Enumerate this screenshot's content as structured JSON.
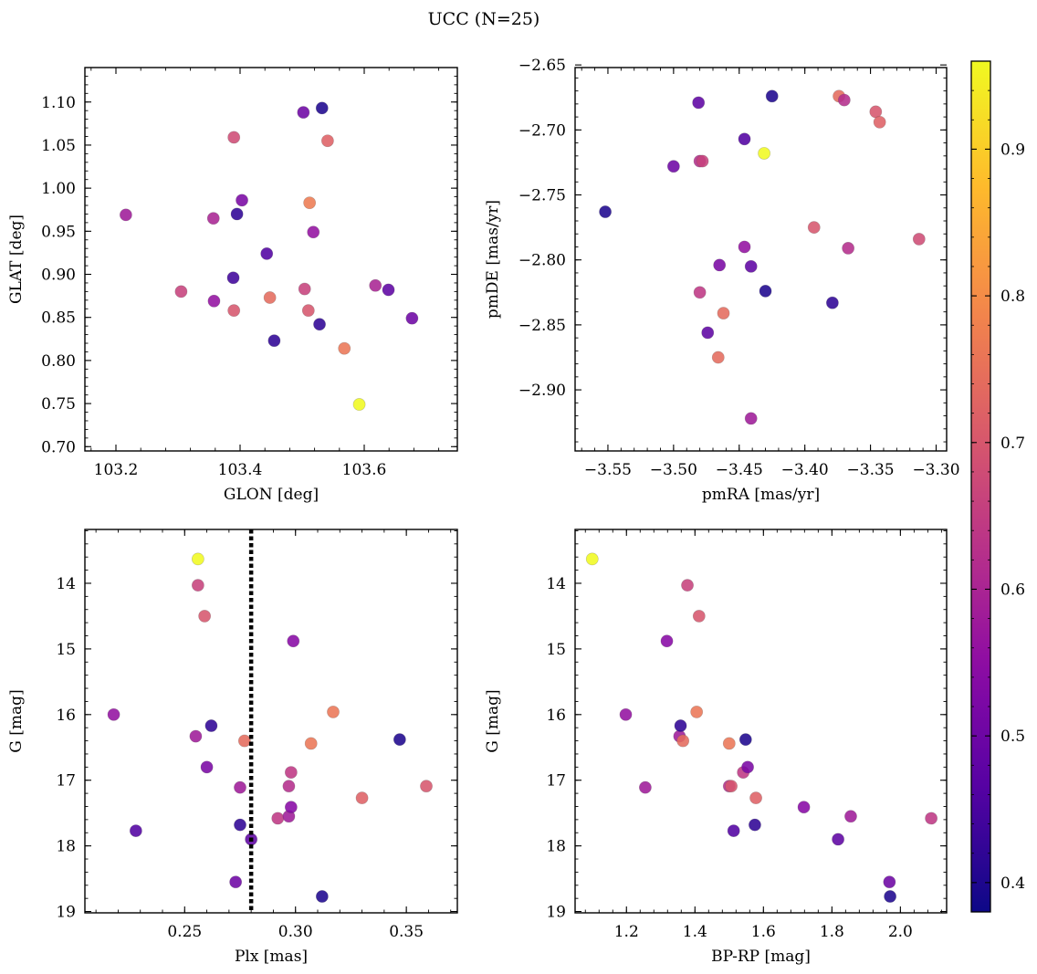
{
  "figure": {
    "title": "UCC (N=25)"
  },
  "colorbar": {
    "min": 0.38,
    "max": 0.96,
    "ticks": [
      0.4,
      0.5,
      0.6,
      0.7,
      0.8,
      0.9
    ],
    "tick_labels": [
      "0.4",
      "0.5",
      "0.6",
      "0.7",
      "0.8",
      "0.9"
    ],
    "colormap": "plasma"
  },
  "chart_data": [
    {
      "type": "scatter",
      "xlabel": "GLON [deg]",
      "ylabel": "GLAT [deg]",
      "xlim": [
        103.15,
        103.75
      ],
      "ylim": [
        0.695,
        1.14
      ],
      "invert_y": false,
      "xticks": [
        103.2,
        103.4,
        103.6
      ],
      "xtick_labels": [
        "103.2",
        "103.4",
        "103.6"
      ],
      "yticks": [
        0.7,
        0.75,
        0.8,
        0.85,
        0.9,
        0.95,
        1.0,
        1.05,
        1.1
      ],
      "ytick_labels": [
        "0.70",
        "0.75",
        "0.80",
        "0.85",
        "0.90",
        "0.95",
        "1.00",
        "1.05",
        "1.10"
      ],
      "points": [
        {
          "x": 103.216,
          "y": 0.969,
          "c": 0.58
        },
        {
          "x": 103.305,
          "y": 0.88,
          "c": 0.66
        },
        {
          "x": 103.357,
          "y": 0.965,
          "c": 0.6
        },
        {
          "x": 103.358,
          "y": 0.869,
          "c": 0.56
        },
        {
          "x": 103.39,
          "y": 1.059,
          "c": 0.68
        },
        {
          "x": 103.39,
          "y": 0.858,
          "c": 0.7
        },
        {
          "x": 103.389,
          "y": 0.896,
          "c": 0.44
        },
        {
          "x": 103.395,
          "y": 0.97,
          "c": 0.42
        },
        {
          "x": 103.403,
          "y": 0.986,
          "c": 0.52
        },
        {
          "x": 103.443,
          "y": 0.924,
          "c": 0.46
        },
        {
          "x": 103.448,
          "y": 0.873,
          "c": 0.74
        },
        {
          "x": 103.455,
          "y": 0.823,
          "c": 0.42
        },
        {
          "x": 103.502,
          "y": 1.088,
          "c": 0.5
        },
        {
          "x": 103.504,
          "y": 0.883,
          "c": 0.66
        },
        {
          "x": 103.51,
          "y": 0.858,
          "c": 0.7
        },
        {
          "x": 103.512,
          "y": 0.983,
          "c": 0.77
        },
        {
          "x": 103.518,
          "y": 0.949,
          "c": 0.56
        },
        {
          "x": 103.528,
          "y": 0.842,
          "c": 0.42
        },
        {
          "x": 103.532,
          "y": 1.093,
          "c": 0.4
        },
        {
          "x": 103.541,
          "y": 1.055,
          "c": 0.72
        },
        {
          "x": 103.568,
          "y": 0.814,
          "c": 0.76
        },
        {
          "x": 103.592,
          "y": 0.749,
          "c": 0.96
        },
        {
          "x": 103.618,
          "y": 0.887,
          "c": 0.6
        },
        {
          "x": 103.639,
          "y": 0.882,
          "c": 0.48
        },
        {
          "x": 103.677,
          "y": 0.849,
          "c": 0.5
        }
      ]
    },
    {
      "type": "scatter",
      "xlabel": "pmRA [mas/yr]",
      "ylabel": "pmDE [mas/yr]",
      "xlim": [
        -3.575,
        -3.292
      ],
      "ylim": [
        -2.947,
        -2.652
      ],
      "invert_y": false,
      "xticks": [
        -3.55,
        -3.5,
        -3.45,
        -3.4,
        -3.35,
        -3.3
      ],
      "xtick_labels": [
        "−3.55",
        "−3.50",
        "−3.45",
        "−3.40",
        "−3.35",
        "−3.30"
      ],
      "yticks": [
        -2.9,
        -2.85,
        -2.8,
        -2.75,
        -2.7,
        -2.65
      ],
      "ytick_labels": [
        "−2.90",
        "−2.85",
        "−2.80",
        "−2.75",
        "−2.70",
        "−2.65"
      ],
      "points": [
        {
          "x": -3.552,
          "y": -2.763,
          "c": 0.4
        },
        {
          "x": -3.5,
          "y": -2.728,
          "c": 0.5
        },
        {
          "x": -3.481,
          "y": -2.679,
          "c": 0.48
        },
        {
          "x": -3.48,
          "y": -2.724,
          "c": 0.62
        },
        {
          "x": -3.478,
          "y": -2.724,
          "c": 0.66
        },
        {
          "x": -3.48,
          "y": -2.825,
          "c": 0.64
        },
        {
          "x": -3.474,
          "y": -2.856,
          "c": 0.48
        },
        {
          "x": -3.466,
          "y": -2.875,
          "c": 0.74
        },
        {
          "x": -3.465,
          "y": -2.804,
          "c": 0.52
        },
        {
          "x": -3.462,
          "y": -2.841,
          "c": 0.74
        },
        {
          "x": -3.446,
          "y": -2.707,
          "c": 0.46
        },
        {
          "x": -3.446,
          "y": -2.79,
          "c": 0.56
        },
        {
          "x": -3.441,
          "y": -2.805,
          "c": 0.48
        },
        {
          "x": -3.441,
          "y": -2.922,
          "c": 0.58
        },
        {
          "x": -3.431,
          "y": -2.718,
          "c": 0.96
        },
        {
          "x": -3.43,
          "y": -2.824,
          "c": 0.4
        },
        {
          "x": -3.425,
          "y": -2.674,
          "c": 0.4
        },
        {
          "x": -3.393,
          "y": -2.775,
          "c": 0.7
        },
        {
          "x": -3.379,
          "y": -2.833,
          "c": 0.42
        },
        {
          "x": -3.374,
          "y": -2.674,
          "c": 0.74
        },
        {
          "x": -3.37,
          "y": -2.677,
          "c": 0.62
        },
        {
          "x": -3.367,
          "y": -2.791,
          "c": 0.62
        },
        {
          "x": -3.346,
          "y": -2.686,
          "c": 0.7
        },
        {
          "x": -3.343,
          "y": -2.694,
          "c": 0.72
        },
        {
          "x": -3.313,
          "y": -2.784,
          "c": 0.68
        }
      ]
    },
    {
      "type": "scatter",
      "xlabel": "Plx [mas]",
      "ylabel": "G [mag]",
      "xlim": [
        0.205,
        0.373
      ],
      "ylim": [
        13.18,
        19.02
      ],
      "invert_y": true,
      "vline": {
        "x": 0.28,
        "style": "dotted"
      },
      "xticks": [
        0.25,
        0.3,
        0.35
      ],
      "xtick_labels": [
        "0.25",
        "0.30",
        "0.35"
      ],
      "yticks": [
        14,
        15,
        16,
        17,
        18,
        19
      ],
      "ytick_labels": [
        "14",
        "15",
        "16",
        "17",
        "18",
        "19"
      ],
      "points": [
        {
          "x": 0.218,
          "y": 16.0,
          "c": 0.56
        },
        {
          "x": 0.228,
          "y": 17.77,
          "c": 0.46
        },
        {
          "x": 0.255,
          "y": 16.33,
          "c": 0.58
        },
        {
          "x": 0.256,
          "y": 13.63,
          "c": 0.96
        },
        {
          "x": 0.256,
          "y": 14.03,
          "c": 0.66
        },
        {
          "x": 0.259,
          "y": 14.5,
          "c": 0.7
        },
        {
          "x": 0.26,
          "y": 16.8,
          "c": 0.52
        },
        {
          "x": 0.262,
          "y": 16.17,
          "c": 0.42
        },
        {
          "x": 0.273,
          "y": 18.55,
          "c": 0.5
        },
        {
          "x": 0.275,
          "y": 17.68,
          "c": 0.42
        },
        {
          "x": 0.275,
          "y": 17.11,
          "c": 0.58
        },
        {
          "x": 0.277,
          "y": 16.4,
          "c": 0.74
        },
        {
          "x": 0.28,
          "y": 17.9,
          "c": 0.48
        },
        {
          "x": 0.292,
          "y": 17.58,
          "c": 0.64
        },
        {
          "x": 0.297,
          "y": 17.09,
          "c": 0.62
        },
        {
          "x": 0.297,
          "y": 17.55,
          "c": 0.58
        },
        {
          "x": 0.298,
          "y": 16.88,
          "c": 0.64
        },
        {
          "x": 0.298,
          "y": 17.41,
          "c": 0.54
        },
        {
          "x": 0.299,
          "y": 14.88,
          "c": 0.54
        },
        {
          "x": 0.307,
          "y": 16.44,
          "c": 0.76
        },
        {
          "x": 0.312,
          "y": 18.77,
          "c": 0.4
        },
        {
          "x": 0.317,
          "y": 15.96,
          "c": 0.76
        },
        {
          "x": 0.33,
          "y": 17.27,
          "c": 0.72
        },
        {
          "x": 0.347,
          "y": 16.38,
          "c": 0.4
        },
        {
          "x": 0.359,
          "y": 17.09,
          "c": 0.7
        }
      ]
    },
    {
      "type": "scatter",
      "xlabel": "BP-RP [mag]",
      "ylabel": "G [mag]",
      "xlim": [
        1.05,
        2.135
      ],
      "ylim": [
        13.18,
        19.02
      ],
      "invert_y": true,
      "xticks": [
        1.2,
        1.4,
        1.6,
        1.8,
        2.0
      ],
      "xtick_labels": [
        "1.2",
        "1.4",
        "1.6",
        "1.8",
        "2.0"
      ],
      "yticks": [
        14,
        15,
        16,
        17,
        18,
        19
      ],
      "ytick_labels": [
        "14",
        "15",
        "16",
        "17",
        "18",
        "19"
      ],
      "points": [
        {
          "x": 1.1,
          "y": 13.63,
          "c": 0.96
        },
        {
          "x": 1.198,
          "y": 16.0,
          "c": 0.56
        },
        {
          "x": 1.255,
          "y": 17.11,
          "c": 0.58
        },
        {
          "x": 1.318,
          "y": 14.88,
          "c": 0.54
        },
        {
          "x": 1.355,
          "y": 16.33,
          "c": 0.58
        },
        {
          "x": 1.358,
          "y": 16.17,
          "c": 0.42
        },
        {
          "x": 1.365,
          "y": 16.4,
          "c": 0.74
        },
        {
          "x": 1.378,
          "y": 14.03,
          "c": 0.66
        },
        {
          "x": 1.405,
          "y": 15.96,
          "c": 0.76
        },
        {
          "x": 1.412,
          "y": 14.5,
          "c": 0.7
        },
        {
          "x": 1.5,
          "y": 16.44,
          "c": 0.76
        },
        {
          "x": 1.5,
          "y": 17.09,
          "c": 0.62
        },
        {
          "x": 1.506,
          "y": 17.09,
          "c": 0.7
        },
        {
          "x": 1.513,
          "y": 17.77,
          "c": 0.46
        },
        {
          "x": 1.541,
          "y": 16.88,
          "c": 0.64
        },
        {
          "x": 1.548,
          "y": 16.38,
          "c": 0.4
        },
        {
          "x": 1.554,
          "y": 16.8,
          "c": 0.52
        },
        {
          "x": 1.575,
          "y": 17.68,
          "c": 0.42
        },
        {
          "x": 1.578,
          "y": 17.27,
          "c": 0.72
        },
        {
          "x": 1.718,
          "y": 17.41,
          "c": 0.54
        },
        {
          "x": 1.818,
          "y": 17.9,
          "c": 0.48
        },
        {
          "x": 1.855,
          "y": 17.55,
          "c": 0.58
        },
        {
          "x": 1.968,
          "y": 18.55,
          "c": 0.5
        },
        {
          "x": 1.97,
          "y": 18.77,
          "c": 0.4
        },
        {
          "x": 2.09,
          "y": 17.58,
          "c": 0.64
        }
      ]
    }
  ]
}
